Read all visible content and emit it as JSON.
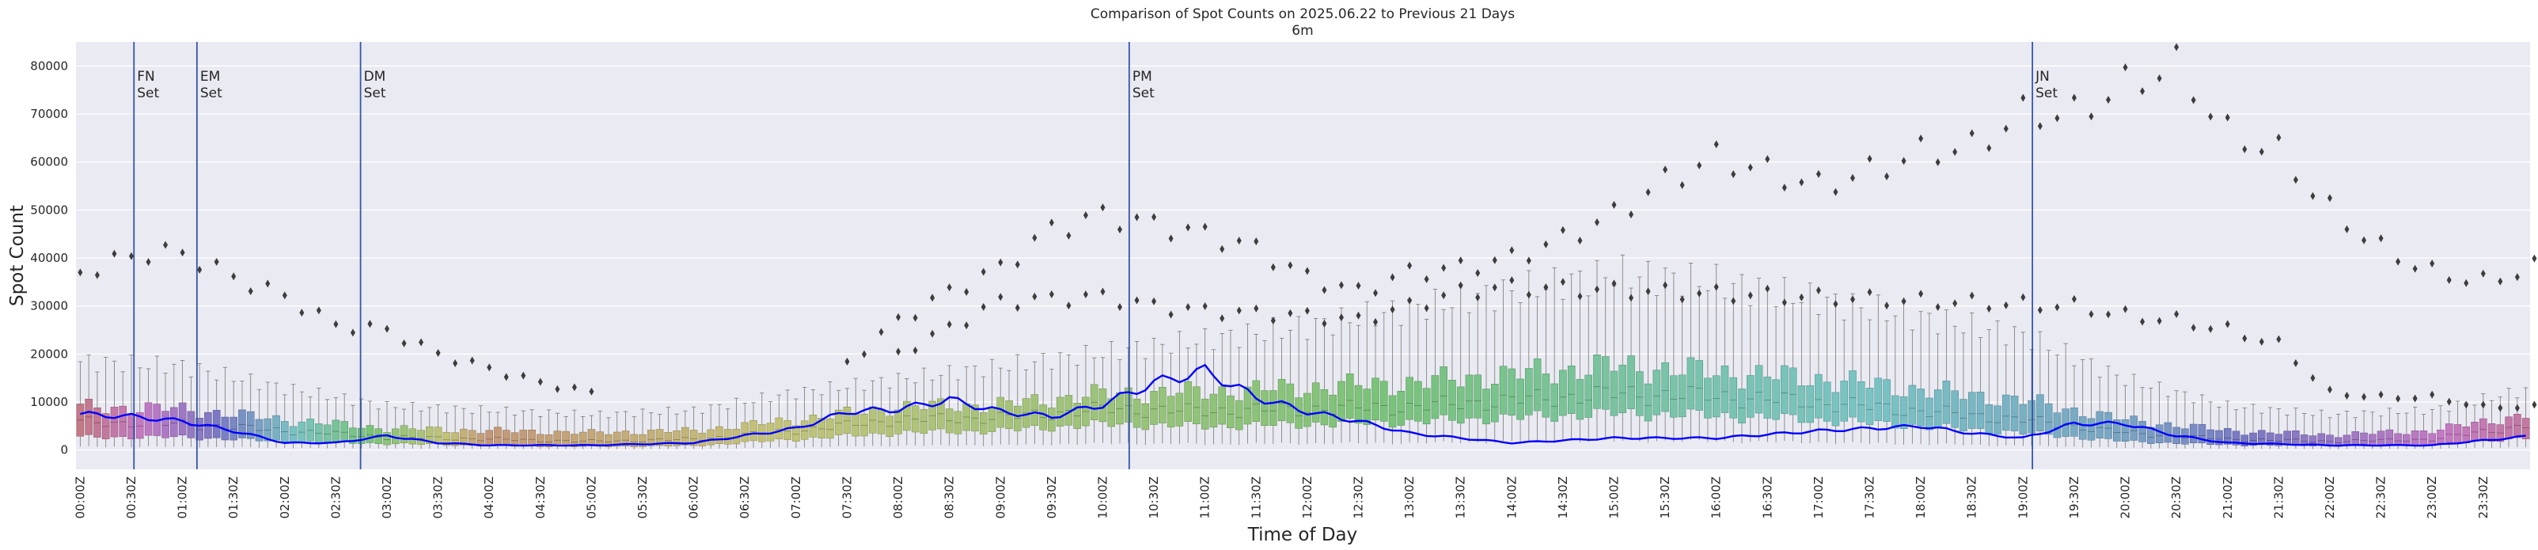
{
  "chart_data": {
    "type": "box",
    "title": "Comparison of Spot Counts on 2025.06.22 to Previous 21 Days",
    "subtitle": "6m",
    "xlabel": "Time of Day",
    "ylabel": "Spot Count",
    "ylim": [
      -4000,
      85000
    ],
    "yticks": [
      0,
      10000,
      20000,
      30000,
      40000,
      50000,
      60000,
      70000,
      80000
    ],
    "ytick_labels": [
      "0",
      "10000",
      "20000",
      "30000",
      "40000",
      "50000",
      "60000",
      "70000",
      "80000"
    ],
    "grid": true,
    "bins_per_day": 288,
    "xtick_labels": [
      "00:00Z",
      "00:30Z",
      "01:00Z",
      "01:30Z",
      "02:00Z",
      "02:30Z",
      "03:00Z",
      "03:30Z",
      "04:00Z",
      "04:30Z",
      "05:00Z",
      "05:30Z",
      "06:00Z",
      "06:30Z",
      "07:00Z",
      "07:30Z",
      "08:00Z",
      "08:30Z",
      "09:00Z",
      "09:30Z",
      "10:00Z",
      "10:30Z",
      "11:00Z",
      "11:30Z",
      "12:00Z",
      "12:30Z",
      "13:00Z",
      "13:30Z",
      "14:00Z",
      "14:30Z",
      "15:00Z",
      "15:30Z",
      "16:00Z",
      "16:30Z",
      "17:00Z",
      "17:30Z",
      "18:00Z",
      "18:30Z",
      "19:00Z",
      "19:30Z",
      "20:00Z",
      "20:30Z",
      "21:00Z",
      "21:30Z",
      "22:00Z",
      "22:30Z",
      "23:00Z",
      "23:30Z"
    ],
    "box_profile": {
      "description": "Approximate hourly profile of the 21-day distribution (spot counts)",
      "hours": [
        0,
        1,
        2,
        3,
        4,
        5,
        6,
        7,
        8,
        9,
        10,
        11,
        12,
        13,
        14,
        15,
        16,
        17,
        18,
        19,
        20,
        21,
        22,
        23,
        24
      ],
      "median": [
        6500,
        6000,
        4500,
        3000,
        2500,
        2000,
        2500,
        4500,
        7000,
        7500,
        9500,
        9000,
        9500,
        10000,
        11500,
        13000,
        12500,
        11000,
        9000,
        7000,
        4000,
        2500,
        2000,
        2500,
        6000
      ],
      "q1": [
        3000,
        3000,
        2000,
        1500,
        1000,
        800,
        1000,
        2500,
        4000,
        4500,
        6000,
        5500,
        6000,
        6500,
        7500,
        8500,
        8000,
        7000,
        5500,
        4000,
        2000,
        1200,
        1000,
        1200,
        3000
      ],
      "q3": [
        10000,
        9500,
        7000,
        5000,
        4500,
        4000,
        4500,
        7000,
        10000,
        10500,
        13000,
        13500,
        14500,
        15500,
        17500,
        19500,
        18000,
        16500,
        14000,
        11500,
        7000,
        4500,
        3500,
        4500,
        8500
      ],
      "whisker_hi": [
        20000,
        19000,
        14000,
        10000,
        9000,
        8000,
        9000,
        13000,
        16000,
        19000,
        22000,
        25000,
        28000,
        32000,
        36000,
        40000,
        38000,
        34000,
        30000,
        26000,
        16000,
        10000,
        8000,
        9000,
        14000
      ]
    },
    "series": [
      {
        "name": "2025.06.22",
        "color": "#0000ff",
        "description": "Spot counts for 2025.06.22, hourly approximation",
        "hours": [
          0,
          0.5,
          1,
          1.5,
          2,
          2.5,
          3,
          3.5,
          4,
          5,
          6,
          7,
          7.5,
          8,
          8.5,
          9,
          9.5,
          10,
          10.5,
          11,
          11.5,
          12,
          12.5,
          13,
          14,
          15,
          16,
          17,
          17.5,
          18,
          18.5,
          19,
          19.5,
          20,
          20.5,
          21,
          22,
          23,
          24
        ],
        "values": [
          7500,
          7000,
          6000,
          4000,
          1500,
          1500,
          3000,
          1500,
          1000,
          1000,
          1500,
          4500,
          8000,
          8500,
          10500,
          8000,
          7000,
          9500,
          14000,
          16500,
          11000,
          8000,
          6000,
          3500,
          1500,
          2500,
          2500,
          4000,
          4500,
          5000,
          3500,
          2500,
          5500,
          5500,
          3000,
          1500,
          1000,
          1000,
          3000
        ]
      }
    ],
    "outlier_bands": [
      {
        "hours": [
          0,
          0.6,
          1,
          1.5,
          2,
          2.5,
          3,
          3.5,
          4,
          4.5,
          5
        ],
        "values": [
          37000,
          41000,
          41000,
          36000,
          32000,
          26000,
          25000,
          20000,
          17000,
          14000,
          12000
        ]
      },
      {
        "hours": [
          7.5,
          8,
          8.5,
          9,
          9.5,
          10,
          10.5,
          11,
          11.5,
          12,
          12.5,
          13,
          13.5,
          14,
          14.5,
          15,
          15.5,
          16,
          16.5,
          17,
          17.5,
          18,
          18.5,
          19,
          19.5,
          20,
          20.5,
          21,
          21.5,
          22,
          22.5,
          23,
          23.5,
          24
        ],
        "values": [
          18000,
          27000,
          33000,
          38000,
          46000,
          49000,
          47000,
          45000,
          42000,
          36000,
          33000,
          37000,
          38000,
          40000,
          44000,
          49000,
          56000,
          61000,
          58000,
          55000,
          58000,
          62000,
          63000,
          70000,
          70000,
          76000,
          80000,
          66000,
          62000,
          50000,
          42000,
          37000,
          35000,
          38000
        ]
      },
      {
        "hours": [
          8,
          9,
          10,
          10.5,
          11,
          12,
          12.5,
          13,
          13.5,
          14,
          19.5,
          20,
          20.5,
          21,
          21.5,
          22,
          22.5,
          23,
          23.5,
          24
        ],
        "values": [
          20000,
          31000,
          32000,
          30000,
          29000,
          28000,
          27000,
          30000,
          33000,
          34000,
          30000,
          28000,
          27000,
          25000,
          22000,
          12000,
          11000,
          11000,
          9000,
          9000
        ]
      }
    ],
    "vertical_markers": [
      {
        "label_line1": "FN",
        "label_line2": "Set",
        "hour": 0.567
      },
      {
        "label_line1": "EM",
        "label_line2": "Set",
        "hour": 1.183
      },
      {
        "label_line1": "DM",
        "label_line2": "Set",
        "hour": 2.783
      },
      {
        "label_line1": "PM",
        "label_line2": "Set",
        "hour": 10.3
      },
      {
        "label_line1": "JN",
        "label_line2": "Set",
        "hour": 19.133
      }
    ]
  },
  "colors": {
    "axes_bg": "#eaeaf2",
    "grid": "#ffffff",
    "marker_line": "#3355aa",
    "series_line": "#0000ff",
    "outlier": "#3d3d3d",
    "whisker": "#777777"
  }
}
